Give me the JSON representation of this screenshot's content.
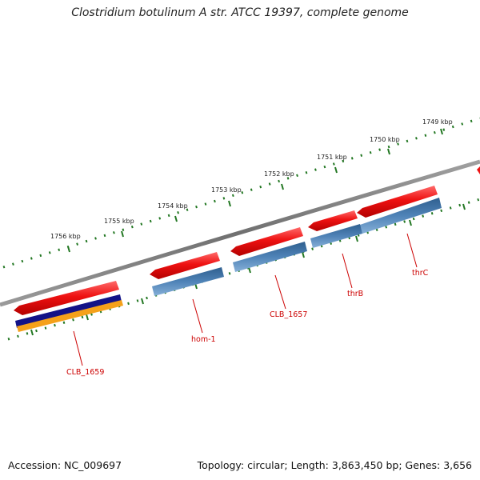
{
  "title": "Clostridium botulinum A str. ATCC 19397, complete genome",
  "ticks": [
    {
      "label": "1749 kbp",
      "major": true
    },
    {
      "label": "1750 kbp",
      "major": true
    },
    {
      "label": "1751 kbp",
      "major": true
    },
    {
      "label": "1752 kbp",
      "major": true
    },
    {
      "label": "1753 kbp",
      "major": true
    },
    {
      "label": "1754 kbp",
      "major": true
    },
    {
      "label": "1755 kbp",
      "major": true
    },
    {
      "label": "1756 kbp",
      "major": true
    }
  ],
  "genes": [
    {
      "name": "thrC",
      "strand": "reverse"
    },
    {
      "name": "thrB",
      "strand": "reverse"
    },
    {
      "name": "CLB_1657",
      "strand": "reverse"
    },
    {
      "name": "hom-1",
      "strand": "reverse"
    },
    {
      "name": "CLB_1659",
      "strand": "reverse"
    }
  ],
  "colors": {
    "backbone": "#808080",
    "gene": "#ee1111",
    "cds": "#4f83b7",
    "tick": "#227722",
    "label": "#cc0000",
    "extra1": "#121287",
    "extra2": "#f5a11a"
  },
  "footer": {
    "accession": "Accession: NC_009697",
    "topology": "Topology: circular; Length: 3,863,450 bp; Genes: 3,656"
  }
}
